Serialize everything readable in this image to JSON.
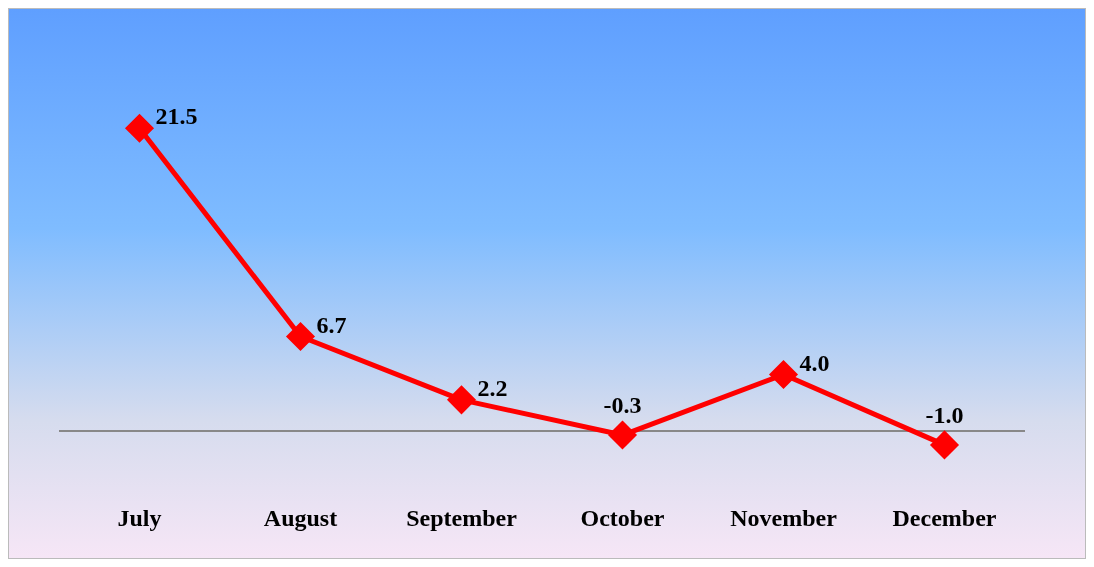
{
  "chart_data": {
    "type": "line",
    "categories": [
      "July",
      "August",
      "September",
      "October",
      "November",
      "December"
    ],
    "series": [
      {
        "color": "#ff0000",
        "values": [
          21.5,
          6.7,
          2.2,
          -0.3,
          4.0,
          -1.0
        ],
        "value_labels": [
          "21.5",
          "6.7",
          "2.2",
          "-0.3",
          "4.0",
          "-1.0"
        ]
      }
    ],
    "marker": "diamond",
    "line_style": "solid",
    "grid": false,
    "legend": false,
    "tick_labels": "x"
  }
}
